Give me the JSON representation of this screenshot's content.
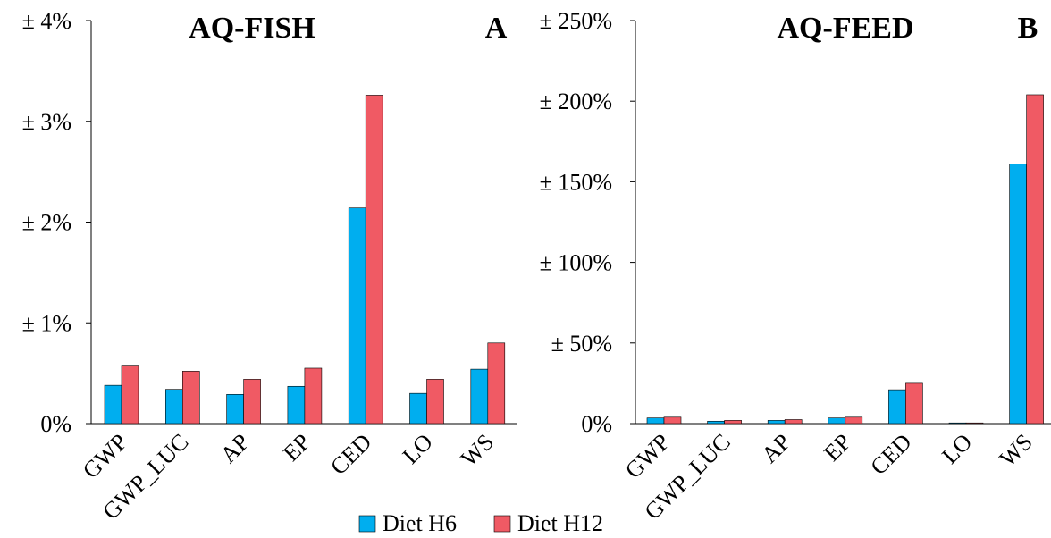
{
  "chart_data": [
    {
      "type": "bar",
      "title": "AQ-FISH",
      "panel_label": "A",
      "categories": [
        "GWP",
        "GWP_LUC",
        "AP",
        "EP",
        "CED",
        "LO",
        "WS"
      ],
      "ylim": [
        0,
        4
      ],
      "yticks": [
        0,
        1,
        2,
        3,
        4
      ],
      "ytick_labels": [
        "0%",
        "± 1%",
        "± 2%",
        "± 3%",
        "± 4%"
      ],
      "series": [
        {
          "name": "Diet H6",
          "values": [
            0.38,
            0.34,
            0.29,
            0.37,
            2.14,
            0.3,
            0.54
          ]
        },
        {
          "name": "Diet H12",
          "values": [
            0.58,
            0.52,
            0.44,
            0.55,
            3.26,
            0.44,
            0.8
          ]
        }
      ]
    },
    {
      "type": "bar",
      "title": "AQ-FEED",
      "panel_label": "B",
      "categories": [
        "GWP",
        "GWP_LUC",
        "AP",
        "EP",
        "CED",
        "LO",
        "WS"
      ],
      "ylim": [
        0,
        250
      ],
      "yticks": [
        0,
        50,
        100,
        150,
        200,
        250
      ],
      "ytick_labels": [
        "0%",
        "± 50%",
        "± 100%",
        "± 150%",
        "± 200%",
        "± 250%"
      ],
      "series": [
        {
          "name": "Diet H6",
          "values": [
            3.5,
            1.5,
            2.0,
            3.5,
            21,
            0.3,
            161
          ]
        },
        {
          "name": "Diet H12",
          "values": [
            4.0,
            2.0,
            2.5,
            4.0,
            25,
            0.3,
            204
          ]
        }
      ]
    }
  ],
  "legend": {
    "position": "bottom-center",
    "items": [
      {
        "label": "Diet H6",
        "color": "#00aeef"
      },
      {
        "label": "Diet H12",
        "color": "#f05a64"
      }
    ]
  }
}
